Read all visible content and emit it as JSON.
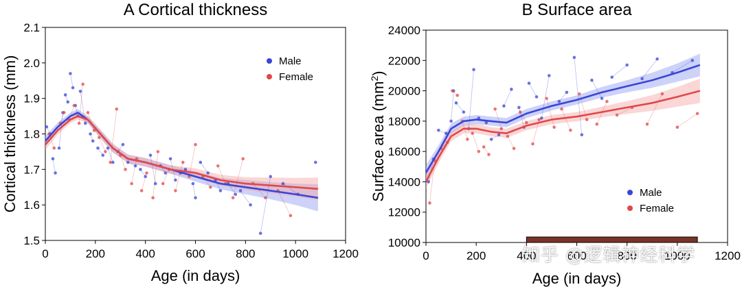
{
  "colors": {
    "male": "#3a45d6",
    "male_band": "#8f9bf0",
    "female": "#e04848",
    "female_band": "#f3a5a5",
    "bar": "#7a3328"
  },
  "watermark": "知乎 @逻辑神经科学",
  "chart_data": [
    {
      "type": "scatter",
      "title": "A Cortical thickness",
      "xlabel": "Age (in days)",
      "ylabel": "Cortical thickness (mm)",
      "xlim": [
        0,
        1200
      ],
      "ylim": [
        1.5,
        2.1
      ],
      "xticks": [
        0,
        200,
        400,
        600,
        800,
        1000,
        1200
      ],
      "yticks": [
        1.5,
        1.6,
        1.7,
        1.8,
        1.9,
        2.0,
        2.1
      ],
      "ytick_labels": [
        "1.5",
        "1.6",
        "1.7",
        "1.8",
        "1.9",
        "2.0",
        "2.1"
      ],
      "legend": {
        "position": "top-right",
        "entries": [
          "Male",
          "Female"
        ]
      },
      "series": [
        {
          "name": "Male",
          "color": "male",
          "fit": [
            [
              0,
              1.78
            ],
            [
              50,
              1.82
            ],
            [
              100,
              1.85
            ],
            [
              130,
              1.86
            ],
            [
              170,
              1.84
            ],
            [
              220,
              1.8
            ],
            [
              270,
              1.76
            ],
            [
              330,
              1.73
            ],
            [
              400,
              1.72
            ],
            [
              500,
              1.7
            ],
            [
              600,
              1.68
            ],
            [
              700,
              1.66
            ],
            [
              800,
              1.65
            ],
            [
              900,
              1.64
            ],
            [
              1000,
              1.63
            ],
            [
              1090,
              1.62
            ]
          ],
          "band": [
            0.015,
            0.012,
            0.01,
            0.01,
            0.01,
            0.012,
            0.012,
            0.012,
            0.012,
            0.012,
            0.014,
            0.016,
            0.02,
            0.024,
            0.03,
            0.038
          ],
          "points": [
            [
              5,
              1.82
            ],
            [
              20,
              1.8
            ],
            [
              30,
              1.73
            ],
            [
              40,
              1.69
            ],
            [
              55,
              1.76
            ],
            [
              70,
              1.86
            ],
            [
              80,
              1.91
            ],
            [
              90,
              1.89
            ],
            [
              100,
              1.97
            ],
            [
              110,
              1.93
            ],
            [
              120,
              1.88
            ],
            [
              130,
              1.85
            ],
            [
              140,
              1.92
            ],
            [
              160,
              1.83
            ],
            [
              180,
              1.8
            ],
            [
              190,
              1.78
            ],
            [
              210,
              1.76
            ],
            [
              230,
              1.74
            ],
            [
              250,
              1.76
            ],
            [
              270,
              1.72
            ],
            [
              290,
              1.75
            ],
            [
              310,
              1.77
            ],
            [
              330,
              1.72
            ],
            [
              360,
              1.71
            ],
            [
              380,
              1.7
            ],
            [
              400,
              1.68
            ],
            [
              420,
              1.74
            ],
            [
              440,
              1.66
            ],
            [
              460,
              1.71
            ],
            [
              480,
              1.69
            ],
            [
              500,
              1.73
            ],
            [
              520,
              1.67
            ],
            [
              540,
              1.69
            ],
            [
              560,
              1.7
            ],
            [
              590,
              1.66
            ],
            [
              600,
              1.62
            ],
            [
              620,
              1.72
            ],
            [
              650,
              1.69
            ],
            [
              680,
              1.67
            ],
            [
              700,
              1.64
            ],
            [
              730,
              1.66
            ],
            [
              760,
              1.63
            ],
            [
              780,
              1.64
            ],
            [
              820,
              1.6
            ],
            [
              860,
              1.52
            ],
            [
              900,
              1.68
            ],
            [
              950,
              1.66
            ],
            [
              1010,
              1.63
            ],
            [
              1080,
              1.72
            ]
          ]
        },
        {
          "name": "Female",
          "color": "female",
          "fit": [
            [
              0,
              1.77
            ],
            [
              50,
              1.81
            ],
            [
              100,
              1.84
            ],
            [
              130,
              1.85
            ],
            [
              170,
              1.84
            ],
            [
              220,
              1.8
            ],
            [
              270,
              1.76
            ],
            [
              330,
              1.73
            ],
            [
              400,
              1.72
            ],
            [
              500,
              1.7
            ],
            [
              600,
              1.69
            ],
            [
              700,
              1.67
            ],
            [
              800,
              1.66
            ],
            [
              900,
              1.655
            ],
            [
              1000,
              1.65
            ],
            [
              1090,
              1.645
            ]
          ],
          "band": [
            0.015,
            0.012,
            0.01,
            0.01,
            0.01,
            0.012,
            0.012,
            0.012,
            0.012,
            0.012,
            0.013,
            0.015,
            0.018,
            0.022,
            0.026,
            0.032
          ],
          "points": [
            [
              15,
              1.8
            ],
            [
              35,
              1.76
            ],
            [
              60,
              1.83
            ],
            [
              75,
              1.86
            ],
            [
              95,
              1.84
            ],
            [
              115,
              1.88
            ],
            [
              135,
              1.83
            ],
            [
              150,
              1.94
            ],
            [
              170,
              1.86
            ],
            [
              195,
              1.81
            ],
            [
              215,
              1.79
            ],
            [
              240,
              1.75
            ],
            [
              260,
              1.72
            ],
            [
              285,
              1.87
            ],
            [
              300,
              1.74
            ],
            [
              320,
              1.7
            ],
            [
              345,
              1.66
            ],
            [
              365,
              1.73
            ],
            [
              385,
              1.64
            ],
            [
              405,
              1.69
            ],
            [
              430,
              1.62
            ],
            [
              450,
              1.75
            ],
            [
              470,
              1.66
            ],
            [
              495,
              1.7
            ],
            [
              520,
              1.64
            ],
            [
              550,
              1.72
            ],
            [
              575,
              1.68
            ],
            [
              600,
              1.77
            ],
            [
              630,
              1.68
            ],
            [
              660,
              1.65
            ],
            [
              690,
              1.71
            ],
            [
              720,
              1.66
            ],
            [
              750,
              1.62
            ],
            [
              790,
              1.73
            ],
            [
              830,
              1.66
            ],
            [
              880,
              1.62
            ],
            [
              930,
              1.64
            ],
            [
              980,
              1.57
            ]
          ]
        }
      ]
    },
    {
      "type": "scatter",
      "title": "B Surface area",
      "xlabel": "Age (in days)",
      "ylabel": "Surface area (mm",
      "ylabel_sup": "2",
      "ylabel_end": ")",
      "xlim": [
        0,
        1200
      ],
      "ylim": [
        10000,
        24000
      ],
      "xticks": [
        0,
        200,
        400,
        600,
        800,
        1000,
        1200
      ],
      "yticks": [
        10000,
        12000,
        14000,
        16000,
        18000,
        20000,
        22000,
        24000
      ],
      "legend": {
        "position": "bottom-right",
        "entries": [
          "Male",
          "Female"
        ]
      },
      "bar": {
        "start": 400,
        "end": 1080
      },
      "series": [
        {
          "name": "Male",
          "color": "male",
          "fit": [
            [
              0,
              14600
            ],
            [
              50,
              16000
            ],
            [
              100,
              17500
            ],
            [
              150,
              18000
            ],
            [
              200,
              18100
            ],
            [
              260,
              18000
            ],
            [
              320,
              17900
            ],
            [
              400,
              18500
            ],
            [
              500,
              19000
            ],
            [
              600,
              19400
            ],
            [
              700,
              19900
            ],
            [
              800,
              20300
            ],
            [
              900,
              20700
            ],
            [
              1000,
              21200
            ],
            [
              1090,
              21700
            ]
          ],
          "band": [
            500,
            400,
            350,
            300,
            300,
            300,
            300,
            300,
            300,
            300,
            350,
            400,
            500,
            600,
            750
          ],
          "points": [
            [
              10,
              14000
            ],
            [
              30,
              15500
            ],
            [
              50,
              17400
            ],
            [
              80,
              17200
            ],
            [
              100,
              18000
            ],
            [
              110,
              20000
            ],
            [
              120,
              19200
            ],
            [
              150,
              18600
            ],
            [
              170,
              17500
            ],
            [
              190,
              21400
            ],
            [
              210,
              18200
            ],
            [
              240,
              17900
            ],
            [
              260,
              16800
            ],
            [
              290,
              17100
            ],
            [
              310,
              19000
            ],
            [
              340,
              20100
            ],
            [
              370,
              18900
            ],
            [
              390,
              17600
            ],
            [
              410,
              20500
            ],
            [
              440,
              19600
            ],
            [
              460,
              18200
            ],
            [
              490,
              21000
            ],
            [
              530,
              19300
            ],
            [
              560,
              19900
            ],
            [
              590,
              22200
            ],
            [
              620,
              17100
            ],
            [
              660,
              20700
            ],
            [
              700,
              19500
            ],
            [
              740,
              20900
            ],
            [
              800,
              21700
            ],
            [
              860,
              20800
            ],
            [
              920,
              22100
            ],
            [
              980,
              21200
            ],
            [
              1060,
              22000
            ]
          ]
        },
        {
          "name": "Female",
          "color": "female",
          "fit": [
            [
              0,
              14000
            ],
            [
              50,
              15600
            ],
            [
              100,
              17000
            ],
            [
              150,
              17500
            ],
            [
              200,
              17500
            ],
            [
              260,
              17300
            ],
            [
              320,
              17200
            ],
            [
              400,
              17700
            ],
            [
              500,
              18100
            ],
            [
              600,
              18300
            ],
            [
              700,
              18600
            ],
            [
              800,
              18900
            ],
            [
              900,
              19200
            ],
            [
              1000,
              19600
            ],
            [
              1090,
              20000
            ]
          ],
          "band": [
            450,
            380,
            330,
            300,
            300,
            300,
            300,
            300,
            300,
            300,
            350,
            420,
            520,
            650,
            800
          ],
          "points": [
            [
              15,
              12600
            ],
            [
              35,
              15400
            ],
            [
              60,
              16200
            ],
            [
              85,
              16600
            ],
            [
              105,
              20000
            ],
            [
              125,
              19700
            ],
            [
              145,
              18000
            ],
            [
              165,
              16800
            ],
            [
              185,
              17200
            ],
            [
              210,
              16000
            ],
            [
              230,
              16300
            ],
            [
              250,
              15800
            ],
            [
              275,
              18800
            ],
            [
              300,
              17500
            ],
            [
              325,
              17000
            ],
            [
              350,
              16200
            ],
            [
              375,
              18600
            ],
            [
              400,
              17900
            ],
            [
              425,
              16500
            ],
            [
              450,
              18100
            ],
            [
              480,
              19500
            ],
            [
              510,
              17600
            ],
            [
              540,
              18800
            ],
            [
              575,
              17400
            ],
            [
              610,
              19800
            ],
            [
              640,
              18100
            ],
            [
              680,
              17800
            ],
            [
              720,
              19300
            ],
            [
              760,
              18400
            ],
            [
              820,
              18900
            ],
            [
              880,
              17800
            ],
            [
              940,
              19800
            ],
            [
              1000,
              17600
            ],
            [
              1080,
              18500
            ]
          ]
        }
      ]
    }
  ]
}
